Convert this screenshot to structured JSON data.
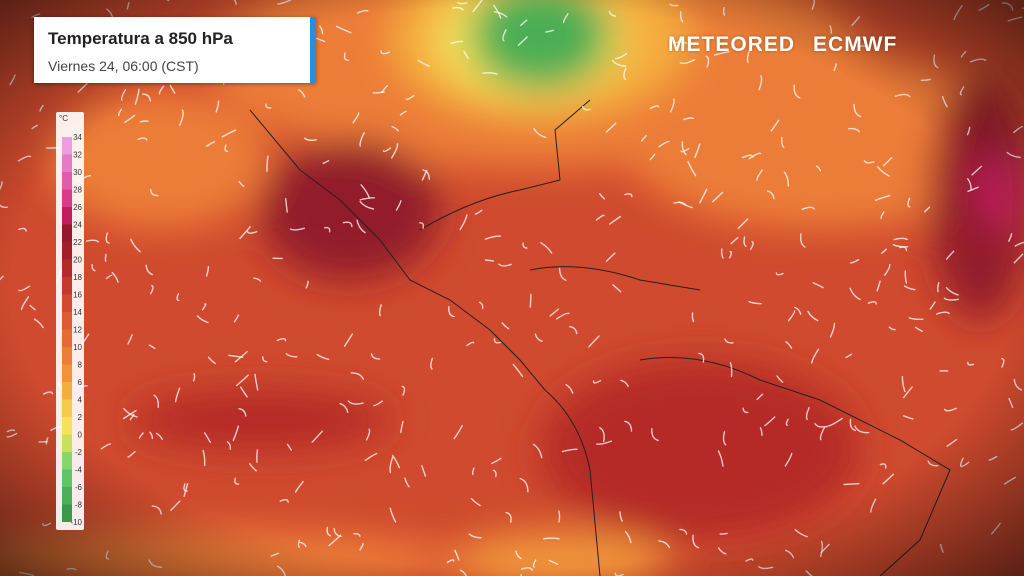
{
  "header": {
    "title": "Temperatura a 850 hPa",
    "subtitle": "Viernes 24, 06:00 (CST)"
  },
  "legend": {
    "unit": "°C",
    "ticks": [
      34,
      32,
      30,
      28,
      26,
      24,
      22,
      20,
      18,
      16,
      14,
      12,
      10,
      8,
      6,
      4,
      2,
      0,
      -2,
      -4,
      -6,
      -8,
      -10
    ],
    "colors": [
      "#ee9ee0",
      "#e67ac8",
      "#e05aae",
      "#d83a8c",
      "#c21d5e",
      "#921a2c",
      "#a31e27",
      "#b52a28",
      "#c43a2b",
      "#d34a30",
      "#de5a33",
      "#e56a35",
      "#ec7d37",
      "#f0943a",
      "#f5ad3e",
      "#f8c948",
      "#f5e25a",
      "#c8e05a",
      "#86d66a",
      "#5fc464",
      "#4cae55",
      "#3a9a48"
    ]
  },
  "logos": {
    "brand": "METEORED",
    "model": "ECMWF"
  }
}
